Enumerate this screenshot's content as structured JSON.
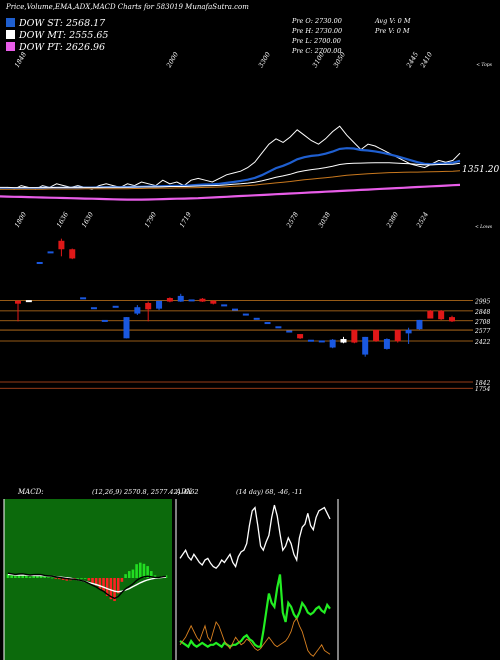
{
  "header": "Price,Volume,EMA,ADX,MACD Charts for 583019 MunafaSutra.com",
  "legend": [
    {
      "label": "DOW ST:",
      "value": "2568.17",
      "color": "#1f5fd0"
    },
    {
      "label": "DOW MT:",
      "value": "2555.65",
      "color": "#ffffff"
    },
    {
      "label": "DOW PT:",
      "value": "2626.96",
      "color": "#e85de8"
    }
  ],
  "ohlc": {
    "open": "Pre O: 2730.00",
    "high": "Pre H: 2730.00",
    "low": "Pre L: 2700.00",
    "close": "Pre C: 2700.00",
    "avgv": "Avg V: 0 M",
    "prev": "Pre V: 0 M"
  },
  "chart_data": [
    {
      "type": "line",
      "name": "price-ema",
      "top_labels": [
        "1848",
        "2000",
        "3300",
        "3100",
        "3050",
        "2445",
        "2410"
      ],
      "bottom_labels": [
        "1800",
        "1636",
        "1630",
        "1790",
        "1719",
        "2578",
        "3038",
        "2380",
        "2524"
      ],
      "corner_labels": [
        "< Tops",
        "< Lows"
      ],
      "current_value": "1351.20",
      "series": [
        {
          "color": "#ffffff",
          "values": [
            1.0,
            1.1,
            1.0,
            1.2,
            1.1,
            1.0,
            1.2,
            1.1,
            1.3,
            1.2,
            1.1,
            1.2,
            1.1,
            1.0,
            1.2,
            1.3,
            1.2,
            1.1,
            1.3,
            1.2,
            1.4,
            1.3,
            1.2,
            1.5,
            1.3,
            1.4,
            1.2,
            1.5,
            1.6,
            1.5,
            1.4,
            1.6,
            1.8,
            1.9,
            2.0,
            2.2,
            2.5,
            3.0,
            3.5,
            3.8,
            3.6,
            3.9,
            4.3,
            4.0,
            3.7,
            3.5,
            3.8,
            4.2,
            4.5,
            4.0,
            3.6,
            3.2,
            3.5,
            3.4,
            3.2,
            3.0,
            2.8,
            2.6,
            2.4,
            2.3,
            2.2,
            2.4,
            2.6,
            2.5,
            2.6,
            3.0
          ]
        },
        {
          "color": "#1f5fd0",
          "values": [
            1.05,
            1.05,
            1.05,
            1.06,
            1.06,
            1.06,
            1.07,
            1.07,
            1.08,
            1.08,
            1.08,
            1.09,
            1.09,
            1.09,
            1.1,
            1.11,
            1.11,
            1.11,
            1.12,
            1.13,
            1.14,
            1.15,
            1.15,
            1.17,
            1.18,
            1.19,
            1.19,
            1.21,
            1.24,
            1.26,
            1.27,
            1.3,
            1.35,
            1.4,
            1.46,
            1.53,
            1.63,
            1.78,
            1.97,
            2.17,
            2.3,
            2.46,
            2.66,
            2.78,
            2.85,
            2.89,
            2.97,
            3.09,
            3.24,
            3.28,
            3.26,
            3.18,
            3.15,
            3.1,
            3.03,
            2.94,
            2.84,
            2.73,
            2.61,
            2.5,
            2.41,
            2.39,
            2.42,
            2.43,
            2.47,
            2.58
          ]
        },
        {
          "color": "#ffffff",
          "values": [
            1.1,
            1.1,
            1.09,
            1.09,
            1.09,
            1.09,
            1.09,
            1.09,
            1.1,
            1.1,
            1.1,
            1.1,
            1.1,
            1.1,
            1.1,
            1.11,
            1.11,
            1.11,
            1.11,
            1.12,
            1.13,
            1.13,
            1.13,
            1.14,
            1.15,
            1.15,
            1.15,
            1.16,
            1.18,
            1.19,
            1.2,
            1.21,
            1.24,
            1.27,
            1.3,
            1.34,
            1.39,
            1.46,
            1.56,
            1.66,
            1.74,
            1.83,
            1.95,
            2.03,
            2.09,
            2.14,
            2.2,
            2.28,
            2.37,
            2.42,
            2.44,
            2.45,
            2.46,
            2.47,
            2.47,
            2.47,
            2.45,
            2.43,
            2.41,
            2.38,
            2.35,
            2.35,
            2.37,
            2.38,
            2.39,
            2.44
          ]
        },
        {
          "color": "#c8781e",
          "values": [
            1.0,
            1.0,
            1.0,
            1.0,
            1.0,
            1.0,
            1.0,
            1.01,
            1.01,
            1.01,
            1.01,
            1.01,
            1.02,
            1.02,
            1.02,
            1.02,
            1.03,
            1.03,
            1.03,
            1.04,
            1.04,
            1.05,
            1.05,
            1.06,
            1.06,
            1.07,
            1.07,
            1.08,
            1.09,
            1.1,
            1.11,
            1.12,
            1.14,
            1.16,
            1.18,
            1.2,
            1.23,
            1.27,
            1.31,
            1.35,
            1.39,
            1.43,
            1.48,
            1.52,
            1.56,
            1.6,
            1.64,
            1.68,
            1.73,
            1.77,
            1.8,
            1.83,
            1.86,
            1.88,
            1.9,
            1.92,
            1.93,
            1.94,
            1.95,
            1.95,
            1.96,
            1.97,
            1.98,
            1.99,
            2.0,
            2.02
          ]
        },
        {
          "color": "#e85de8",
          "values": [
            0.6,
            0.59,
            0.58,
            0.57,
            0.56,
            0.55,
            0.54,
            0.53,
            0.52,
            0.51,
            0.5,
            0.49,
            0.48,
            0.47,
            0.46,
            0.45,
            0.44,
            0.43,
            0.42,
            0.42,
            0.42,
            0.43,
            0.44,
            0.45,
            0.46,
            0.47,
            0.48,
            0.49,
            0.5,
            0.52,
            0.54,
            0.56,
            0.58,
            0.6,
            0.62,
            0.64,
            0.66,
            0.68,
            0.7,
            0.72,
            0.74,
            0.76,
            0.78,
            0.8,
            0.82,
            0.84,
            0.86,
            0.88,
            0.9,
            0.92,
            0.94,
            0.96,
            0.98,
            1.0,
            1.02,
            1.04,
            1.06,
            1.08,
            1.1,
            1.12,
            1.14,
            1.16,
            1.18,
            1.2,
            1.22,
            1.24
          ]
        }
      ]
    },
    {
      "type": "candlestick",
      "name": "candles",
      "levels": [
        {
          "label": "2995",
          "color": "#c8781e"
        },
        {
          "label": "2848",
          "color": "#c8781e"
        },
        {
          "label": "2708",
          "color": "#c8781e"
        },
        {
          "label": "2577",
          "color": "#c8781e"
        },
        {
          "label": "2422",
          "color": "#c8781e"
        },
        {
          "label": "1842",
          "color": "#c85020"
        },
        {
          "label": "1754",
          "color": "#c85020"
        }
      ],
      "candles": [
        {
          "o": 2950,
          "c": 2990,
          "h": 3000,
          "l": 2700,
          "col": "red"
        },
        {
          "o": 3000,
          "c": 3000,
          "h": 3000,
          "l": 3000,
          "col": "white"
        },
        {
          "o": 3540,
          "c": 3540,
          "h": 3540,
          "l": 3540,
          "col": "blue"
        },
        {
          "o": 3690,
          "c": 3690,
          "h": 3690,
          "l": 3690,
          "col": "blue"
        },
        {
          "o": 3840,
          "c": 3720,
          "h": 3870,
          "l": 3620,
          "col": "red"
        },
        {
          "o": 3720,
          "c": 3590,
          "h": 3730,
          "l": 3580,
          "col": "red"
        },
        {
          "o": 3040,
          "c": 3040,
          "h": 3040,
          "l": 3040,
          "col": "blue"
        },
        {
          "o": 2900,
          "c": 2900,
          "h": 2900,
          "l": 2900,
          "col": "blue"
        },
        {
          "o": 2720,
          "c": 2720,
          "h": 2720,
          "l": 2720,
          "col": "blue"
        },
        {
          "o": 2920,
          "c": 2920,
          "h": 2920,
          "l": 2920,
          "col": "blue"
        },
        {
          "o": 2460,
          "c": 2760,
          "h": 2760,
          "l": 2460,
          "col": "blue"
        },
        {
          "o": 2810,
          "c": 2900,
          "h": 2930,
          "l": 2790,
          "col": "blue"
        },
        {
          "o": 2960,
          "c": 2870,
          "h": 2980,
          "l": 2700,
          "col": "red"
        },
        {
          "o": 2880,
          "c": 2990,
          "h": 2990,
          "l": 2860,
          "col": "blue"
        },
        {
          "o": 3030,
          "c": 2980,
          "h": 3040,
          "l": 2970,
          "col": "red"
        },
        {
          "o": 2980,
          "c": 3060,
          "h": 3090,
          "l": 2975,
          "col": "blue"
        },
        {
          "o": 3010,
          "c": 3010,
          "h": 3010,
          "l": 3010,
          "col": "blue"
        },
        {
          "o": 3020,
          "c": 2980,
          "h": 3030,
          "l": 2975,
          "col": "red"
        },
        {
          "o": 2990,
          "c": 2950,
          "h": 3000,
          "l": 2940,
          "col": "red"
        },
        {
          "o": 2940,
          "c": 2940,
          "h": 2940,
          "l": 2940,
          "col": "blue"
        },
        {
          "o": 2880,
          "c": 2880,
          "h": 2880,
          "l": 2880,
          "col": "blue"
        },
        {
          "o": 2810,
          "c": 2810,
          "h": 2810,
          "l": 2810,
          "col": "blue"
        },
        {
          "o": 2750,
          "c": 2750,
          "h": 2750,
          "l": 2750,
          "col": "blue"
        },
        {
          "o": 2690,
          "c": 2690,
          "h": 2690,
          "l": 2690,
          "col": "blue"
        },
        {
          "o": 2630,
          "c": 2630,
          "h": 2630,
          "l": 2630,
          "col": "blue"
        },
        {
          "o": 2570,
          "c": 2570,
          "h": 2570,
          "l": 2570,
          "col": "blue"
        },
        {
          "o": 2520,
          "c": 2460,
          "h": 2520,
          "l": 2450,
          "col": "red"
        },
        {
          "o": 2440,
          "c": 2440,
          "h": 2440,
          "l": 2440,
          "col": "blue"
        },
        {
          "o": 2430,
          "c": 2430,
          "h": 2430,
          "l": 2430,
          "col": "blue"
        },
        {
          "o": 2440,
          "c": 2330,
          "h": 2450,
          "l": 2320,
          "col": "blue"
        },
        {
          "o": 2450,
          "c": 2400,
          "h": 2480,
          "l": 2390,
          "col": "white"
        },
        {
          "o": 2580,
          "c": 2400,
          "h": 2580,
          "l": 2390,
          "col": "red"
        },
        {
          "o": 2480,
          "c": 2230,
          "h": 2480,
          "l": 2200,
          "col": "blue"
        },
        {
          "o": 2580,
          "c": 2420,
          "h": 2580,
          "l": 2410,
          "col": "red"
        },
        {
          "o": 2450,
          "c": 2310,
          "h": 2460,
          "l": 2300,
          "col": "blue"
        },
        {
          "o": 2580,
          "c": 2420,
          "h": 2580,
          "l": 2400,
          "col": "red"
        },
        {
          "o": 2530,
          "c": 2580,
          "h": 2610,
          "l": 2380,
          "col": "blue"
        },
        {
          "o": 2590,
          "c": 2720,
          "h": 2720,
          "l": 2580,
          "col": "blue"
        },
        {
          "o": 2740,
          "c": 2850,
          "h": 2860,
          "l": 2740,
          "col": "red"
        },
        {
          "o": 2850,
          "c": 2730,
          "h": 2860,
          "l": 2720,
          "col": "red"
        },
        {
          "o": 2760,
          "c": 2700,
          "h": 2780,
          "l": 2690,
          "col": "red"
        }
      ]
    },
    {
      "type": "line",
      "name": "macd",
      "title": "MACD",
      "params": "(12,26,9) 2570.8, 2577.42, -6.62",
      "macd_line": [
        0.4,
        0.35,
        0.3,
        0.33,
        0.35,
        0.3,
        0.25,
        0.28,
        0.3,
        0.28,
        0.22,
        0.18,
        0.15,
        0.1,
        0.05,
        0.0,
        -0.05,
        -0.08,
        -0.1,
        -0.15,
        -0.22,
        -0.3,
        -0.45,
        -0.6,
        -0.75,
        -0.95,
        -1.1,
        -1.35,
        -1.55,
        -1.7,
        -1.55,
        -1.2,
        -0.9,
        -0.7,
        -0.5,
        -0.2,
        0.0,
        0.1,
        0.15,
        0.1,
        0.05,
        0.05,
        0.1,
        0.15
      ],
      "signal_line": [
        0.3,
        0.28,
        0.25,
        0.25,
        0.25,
        0.24,
        0.22,
        0.22,
        0.2,
        0.2,
        0.18,
        0.16,
        0.14,
        0.11,
        0.08,
        0.05,
        0.02,
        -0.02,
        -0.08,
        -0.15,
        -0.22,
        -0.3,
        -0.38,
        -0.46,
        -0.55,
        -0.65,
        -0.76,
        -0.88,
        -1.0,
        -1.1,
        -1.15,
        -1.1,
        -1.0,
        -0.88,
        -0.72,
        -0.56,
        -0.4,
        -0.27,
        -0.16,
        -0.08,
        -0.02,
        0.02,
        0.05,
        0.08
      ]
    },
    {
      "type": "line",
      "name": "adx",
      "title": "ADX",
      "params": "(14 day) 68, -46, -11",
      "adx": [
        30,
        35,
        40,
        32,
        28,
        35,
        30,
        25,
        22,
        28,
        30,
        24,
        20,
        18,
        22,
        28,
        25,
        30,
        35,
        25,
        20,
        32,
        38,
        40,
        48,
        70,
        88,
        92,
        70,
        45,
        40,
        50,
        58,
        80,
        95,
        82,
        60,
        40,
        45,
        55,
        48,
        35,
        28,
        55,
        68,
        72,
        85,
        70,
        65,
        80,
        88,
        90,
        92,
        85,
        78
      ],
      "plus_di": [
        10,
        9,
        8,
        7,
        10,
        8,
        7,
        8,
        9,
        8,
        7,
        8,
        8,
        9,
        8,
        7,
        9,
        8,
        7,
        8,
        8,
        9,
        10,
        12,
        13,
        11,
        10,
        8,
        7,
        7,
        15,
        25,
        35,
        30,
        28,
        38,
        45,
        25,
        20,
        30,
        28,
        24,
        22,
        25,
        30,
        28,
        25,
        24,
        25,
        27,
        28,
        26,
        25,
        29,
        27
      ],
      "minus_di": [
        8,
        10,
        12,
        15,
        18,
        15,
        12,
        10,
        14,
        18,
        12,
        10,
        15,
        20,
        18,
        14,
        10,
        8,
        6,
        9,
        12,
        10,
        8,
        9,
        11,
        10,
        8,
        6,
        5,
        6,
        8,
        10,
        12,
        10,
        8,
        7,
        8,
        9,
        10,
        12,
        15,
        20,
        22,
        18,
        15,
        10,
        5,
        3,
        2,
        4,
        6,
        8,
        5,
        4,
        3
      ]
    }
  ]
}
